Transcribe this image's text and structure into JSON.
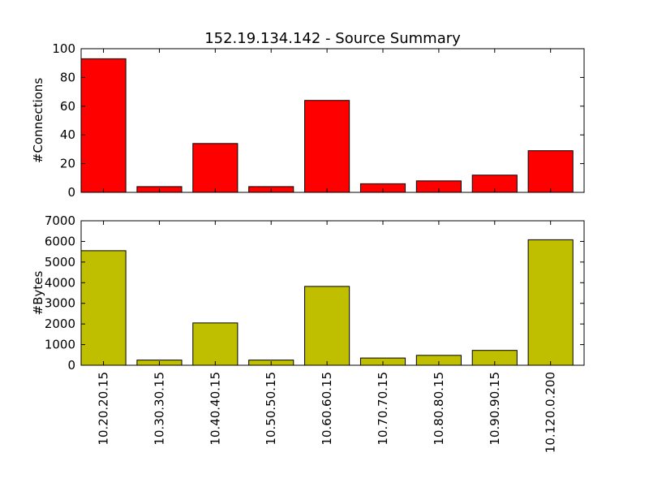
{
  "chart_data": {
    "type": "bar",
    "title": "152.19.134.142 - Source Summary",
    "categories": [
      "10.20.20.15",
      "10.30.30.15",
      "10.40.40.15",
      "10.50.50.15",
      "10.60.60.15",
      "10.70.70.15",
      "10.80.80.15",
      "10.90.90.15",
      "10.120.0.200"
    ],
    "panels": [
      {
        "ylabel": "#Connections",
        "ylim": [
          0,
          100
        ],
        "yticks": [
          0,
          20,
          40,
          60,
          80,
          100
        ],
        "color": "#ff0000",
        "values": [
          93,
          4,
          34,
          4,
          64,
          6,
          8,
          12,
          29
        ]
      },
      {
        "ylabel": "#Bytes",
        "ylim": [
          0,
          7000
        ],
        "yticks": [
          0,
          1000,
          2000,
          3000,
          4000,
          5000,
          6000,
          7000
        ],
        "color": "#bfbf00",
        "values": [
          5550,
          250,
          2050,
          250,
          3820,
          350,
          480,
          720,
          6080
        ]
      }
    ]
  }
}
